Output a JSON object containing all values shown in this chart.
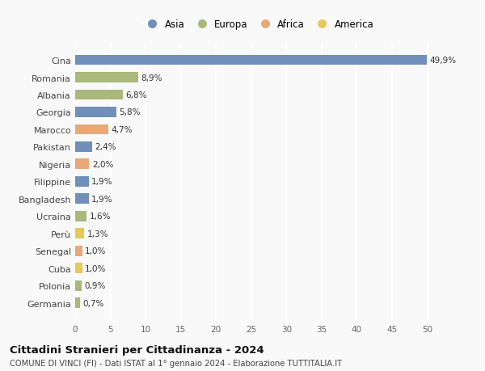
{
  "categories": [
    "Germania",
    "Polonia",
    "Cuba",
    "Senegal",
    "Perù",
    "Ucraina",
    "Bangladesh",
    "Filippine",
    "Nigeria",
    "Pakistan",
    "Marocco",
    "Georgia",
    "Albania",
    "Romania",
    "Cina"
  ],
  "values": [
    0.7,
    0.9,
    1.0,
    1.0,
    1.3,
    1.6,
    1.9,
    1.9,
    2.0,
    2.4,
    4.7,
    5.8,
    6.8,
    8.9,
    49.9
  ],
  "labels": [
    "0,7%",
    "0,9%",
    "1,0%",
    "1,0%",
    "1,3%",
    "1,6%",
    "1,9%",
    "1,9%",
    "2,0%",
    "2,4%",
    "4,7%",
    "5,8%",
    "6,8%",
    "8,9%",
    "49,9%"
  ],
  "continents": [
    "Europa",
    "Europa",
    "America",
    "Africa",
    "America",
    "Europa",
    "Asia",
    "Asia",
    "Africa",
    "Asia",
    "Africa",
    "Asia",
    "Europa",
    "Europa",
    "Asia"
  ],
  "colors": {
    "Asia": "#7090bb",
    "Europa": "#aab87c",
    "Africa": "#e8a878",
    "America": "#e8c85a"
  },
  "legend_order": [
    "Asia",
    "Europa",
    "Africa",
    "America"
  ],
  "title": "Cittadini Stranieri per Cittadinanza - 2024",
  "subtitle": "COMUNE DI VINCI (FI) - Dati ISTAT al 1° gennaio 2024 - Elaborazione TUTTITALIA.IT",
  "xlim": [
    0,
    52
  ],
  "xticks": [
    0,
    5,
    10,
    15,
    20,
    25,
    30,
    35,
    40,
    45,
    50
  ],
  "background_color": "#f9f9f9",
  "grid_color": "#ffffff",
  "bar_height": 0.6
}
